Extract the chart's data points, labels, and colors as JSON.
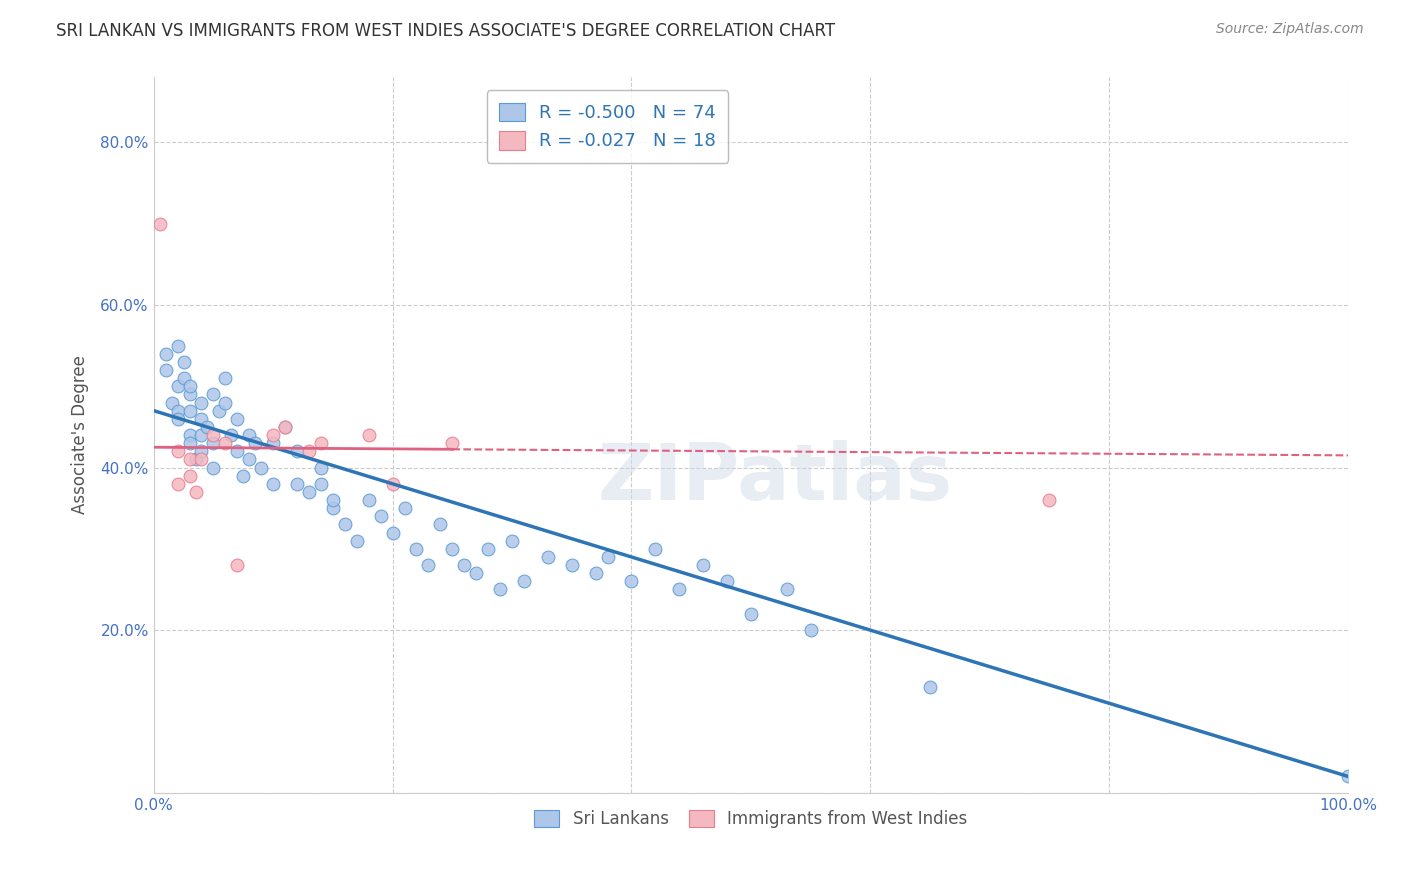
{
  "title": "SRI LANKAN VS IMMIGRANTS FROM WEST INDIES ASSOCIATE'S DEGREE CORRELATION CHART",
  "source": "Source: ZipAtlas.com",
  "xlabel": "",
  "ylabel": "Associate's Degree",
  "xlim": [
    0.0,
    1.0
  ],
  "ylim": [
    0.0,
    0.88
  ],
  "xticks": [
    0.0,
    0.2,
    0.4,
    0.6,
    0.8,
    1.0
  ],
  "xticklabels": [
    "0.0%",
    "",
    "",
    "",
    "",
    "100.0%"
  ],
  "yticks": [
    0.0,
    0.2,
    0.4,
    0.6,
    0.8
  ],
  "yticklabels": [
    "",
    "20.0%",
    "40.0%",
    "60.0%",
    "80.0%"
  ],
  "grid_color": "#cccccc",
  "background_color": "#ffffff",
  "sri_lanka_color": "#aec6e8",
  "sri_lanka_edge_color": "#5b9bd5",
  "west_indies_color": "#f4b8c1",
  "west_indies_edge_color": "#e87d8c",
  "trend_sri_lanka_color": "#2e75b6",
  "trend_west_indies_color": "#e06080",
  "R_sri": -0.5,
  "N_sri": 74,
  "R_wi": -0.027,
  "N_wi": 18,
  "legend_label_sri": "R = -0.500   N = 74",
  "legend_label_wi": "R = -0.027   N = 18",
  "watermark": "ZIPatlas",
  "marker_size": 85,
  "sri_lanka_x": [
    0.01,
    0.01,
    0.015,
    0.02,
    0.02,
    0.02,
    0.02,
    0.025,
    0.025,
    0.03,
    0.03,
    0.03,
    0.03,
    0.03,
    0.035,
    0.04,
    0.04,
    0.04,
    0.04,
    0.045,
    0.05,
    0.05,
    0.05,
    0.055,
    0.06,
    0.06,
    0.065,
    0.07,
    0.07,
    0.075,
    0.08,
    0.08,
    0.085,
    0.09,
    0.1,
    0.1,
    0.11,
    0.12,
    0.12,
    0.13,
    0.14,
    0.14,
    0.15,
    0.15,
    0.16,
    0.17,
    0.18,
    0.19,
    0.2,
    0.21,
    0.22,
    0.23,
    0.24,
    0.25,
    0.26,
    0.27,
    0.28,
    0.29,
    0.3,
    0.31,
    0.33,
    0.35,
    0.37,
    0.38,
    0.4,
    0.42,
    0.44,
    0.46,
    0.48,
    0.5,
    0.53,
    0.55,
    0.65,
    1.0
  ],
  "sri_lanka_y": [
    0.52,
    0.54,
    0.48,
    0.5,
    0.55,
    0.47,
    0.46,
    0.53,
    0.51,
    0.44,
    0.47,
    0.49,
    0.43,
    0.5,
    0.41,
    0.46,
    0.44,
    0.42,
    0.48,
    0.45,
    0.49,
    0.43,
    0.4,
    0.47,
    0.51,
    0.48,
    0.44,
    0.46,
    0.42,
    0.39,
    0.44,
    0.41,
    0.43,
    0.4,
    0.43,
    0.38,
    0.45,
    0.42,
    0.38,
    0.37,
    0.38,
    0.4,
    0.35,
    0.36,
    0.33,
    0.31,
    0.36,
    0.34,
    0.32,
    0.35,
    0.3,
    0.28,
    0.33,
    0.3,
    0.28,
    0.27,
    0.3,
    0.25,
    0.31,
    0.26,
    0.29,
    0.28,
    0.27,
    0.29,
    0.26,
    0.3,
    0.25,
    0.28,
    0.26,
    0.22,
    0.25,
    0.2,
    0.13,
    0.02
  ],
  "west_indies_x": [
    0.005,
    0.02,
    0.02,
    0.03,
    0.03,
    0.035,
    0.04,
    0.05,
    0.06,
    0.07,
    0.1,
    0.11,
    0.13,
    0.14,
    0.18,
    0.2,
    0.25,
    0.75
  ],
  "west_indies_y": [
    0.7,
    0.42,
    0.38,
    0.41,
    0.39,
    0.37,
    0.41,
    0.44,
    0.43,
    0.28,
    0.44,
    0.45,
    0.42,
    0.43,
    0.44,
    0.38,
    0.43,
    0.36
  ],
  "trend_sri_start_x": 0.0,
  "trend_sri_start_y": 0.47,
  "trend_sri_end_x": 1.0,
  "trend_sri_end_y": 0.02,
  "trend_wi_start_x": 0.0,
  "trend_wi_start_y": 0.425,
  "trend_wi_end_x": 1.0,
  "trend_wi_end_y": 0.415,
  "trend_wi_solid_end_x": 0.25
}
